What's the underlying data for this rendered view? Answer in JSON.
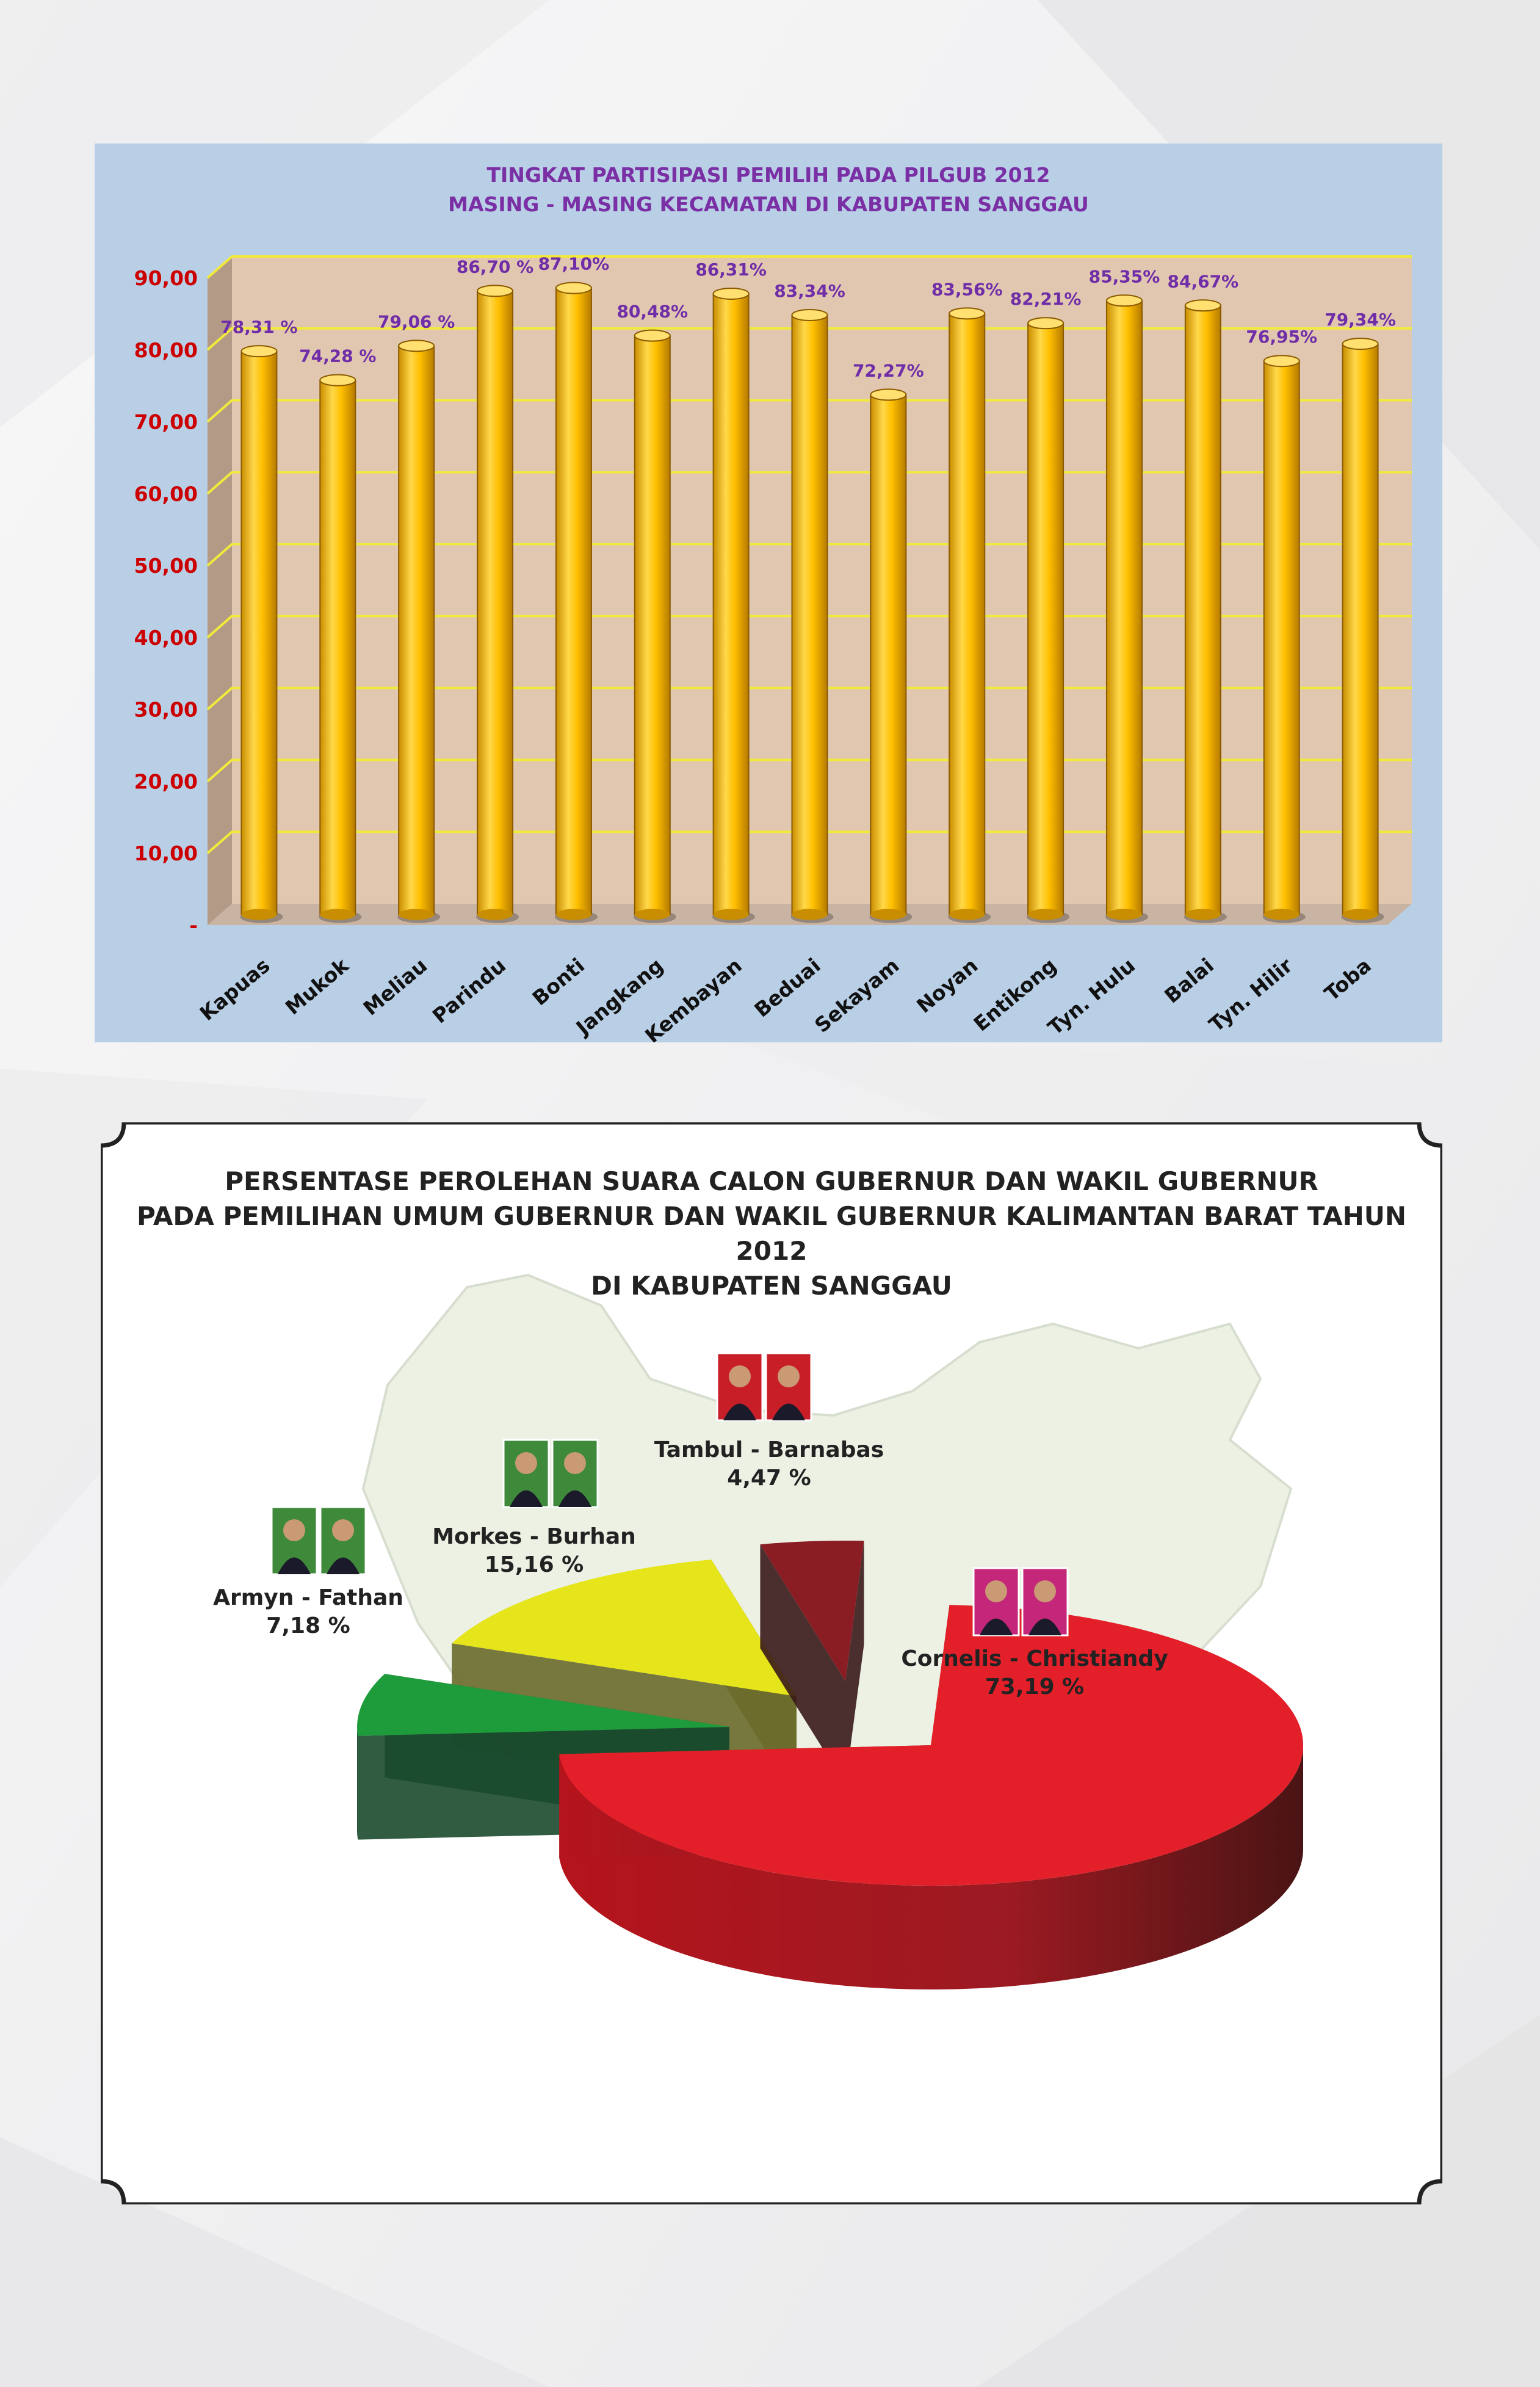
{
  "colors": {
    "page_background": "#f3f3f4",
    "bar_panel_background": "#b9cfe6",
    "plot_background": "#e2c7b0",
    "gridline": "#f2ea3a",
    "bar_fill": "#ffbf00",
    "bar_title": "#7a2fa5",
    "bar_value_label": "#6f2da8",
    "y_tick_label": "#cc0000",
    "category_label": "#111111",
    "pie_red": "#e3202a",
    "pie_green": "#1e9c3c",
    "pie_yellow": "#e6e51b",
    "pie_darkred": "#8a1c24"
  },
  "bar_chart": {
    "title_line1": "TINGKAT PARTISIPASI PEMILIH PADA PILGUB 2012",
    "title_line2": "MASING - MASING KECAMATAN DI KABUPATEN SANGGAU"
  },
  "pie_chart": {
    "title_line1": "PERSENTASE PEROLEHAN SUARA CALON GUBERNUR DAN WAKIL GUBERNUR",
    "title_line2": "PADA PEMILIHAN UMUM GUBERNUR DAN WAKIL GUBERNUR KALIMANTAN BARAT TAHUN 2012",
    "title_line3": "DI KABUPATEN SANGGAU"
  },
  "chart_data": [
    {
      "type": "bar",
      "title": "TINGKAT PARTISIPASI PEMILIH PADA PILGUB 2012 MASING - MASING KECAMATAN DI KABUPATEN SANGGAU",
      "categories": [
        "Kapuas",
        "Mukok",
        "Meliau",
        "Parindu",
        "Bonti",
        "Jangkang",
        "Kembayan",
        "Beduai",
        "Sekayam",
        "Noyan",
        "Entikong",
        "Tyn. Hulu",
        "Balai",
        "Tyn. Hilir",
        "Toba"
      ],
      "values": [
        78.31,
        74.28,
        79.06,
        86.7,
        87.1,
        80.48,
        86.31,
        83.34,
        72.27,
        83.56,
        82.21,
        85.35,
        84.67,
        76.95,
        79.34
      ],
      "value_labels": [
        "78,31 %",
        "74,28 %",
        "79,06 %",
        "86,70 %",
        "87,10%",
        "80,48%",
        "86,31%",
        "83,34%",
        "72,27%",
        "83,56%",
        "82,21%",
        "85,35%",
        "84,67%",
        "76,95%",
        "79,34%"
      ],
      "y_ticks": [
        "-",
        "10,00",
        "20,00",
        "30,00",
        "40,00",
        "50,00",
        "60,00",
        "70,00",
        "80,00",
        "90,00"
      ],
      "ylim": [
        0,
        90
      ],
      "grid": true,
      "legend": "none"
    },
    {
      "type": "pie",
      "title": "PERSENTASE PEROLEHAN SUARA CALON GUBERNUR DAN WAKIL GUBERNUR PADA PEMILIHAN UMUM GUBERNUR DAN WAKIL GUBERNUR KALIMANTAN BARAT TAHUN 2012 DI KABUPATEN SANGGAU",
      "slices": [
        {
          "name": "Cornelis - Christiandy",
          "value": 73.19,
          "label": "73,19 %",
          "color": "#e3202a"
        },
        {
          "name": "Armyn - Fathan",
          "value": 7.18,
          "label": "7,18 %",
          "color": "#1e9c3c"
        },
        {
          "name": "Morkes - Burhan",
          "value": 15.16,
          "label": "15,16 %",
          "color": "#e6e51b"
        },
        {
          "name": "Tambul - Barnabas",
          "value": 4.47,
          "label": "4,47 %",
          "color": "#8a1c24"
        }
      ],
      "legend": "none"
    }
  ]
}
